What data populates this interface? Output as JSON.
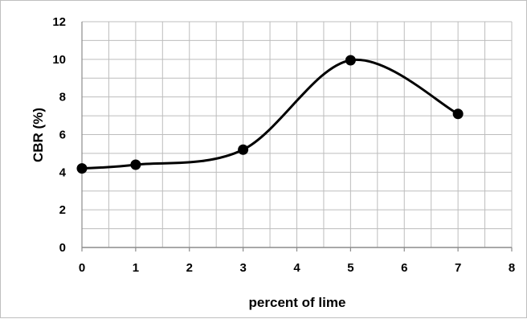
{
  "chart_data": {
    "type": "line",
    "xlabel": "percent of lime",
    "ylabel": "CBR (%)",
    "xlim": [
      0,
      8
    ],
    "ylim": [
      0,
      12
    ],
    "xticks": [
      0,
      1,
      2,
      3,
      4,
      5,
      6,
      7,
      8
    ],
    "yticks": [
      0,
      2,
      4,
      6,
      8,
      10,
      12
    ],
    "grid": true,
    "minor_grid": true,
    "smooth": true,
    "line_color": "#000000",
    "marker": "circle",
    "series": [
      {
        "x": [
          0,
          1,
          3,
          5,
          7
        ],
        "y": [
          4.2,
          4.4,
          5.2,
          9.95,
          7.1
        ]
      }
    ]
  }
}
